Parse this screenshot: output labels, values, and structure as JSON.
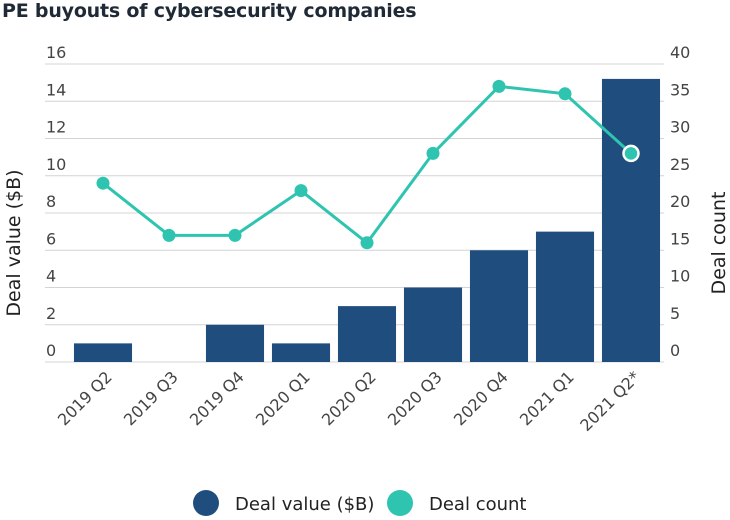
{
  "chart_data": {
    "type": "bar+line",
    "title": "PE buyouts of cybersecurity companies",
    "categories": [
      "2019 Q2",
      "2019 Q3",
      "2019 Q4",
      "2020 Q1",
      "2020 Q2",
      "2020 Q3",
      "2020 Q4",
      "2021 Q1",
      "2021 Q2*"
    ],
    "series": [
      {
        "name": "Deal value ($B)",
        "type": "bar",
        "axis": "left",
        "color": "#1f4e7e",
        "values": [
          1,
          0,
          2,
          1,
          3,
          4,
          6,
          7,
          15.2
        ]
      },
      {
        "name": "Deal count",
        "type": "line",
        "axis": "right",
        "color": "#2ec4b0",
        "values": [
          24,
          17,
          17,
          23,
          16,
          28,
          37,
          36,
          28
        ]
      }
    ],
    "ylabel": "Deal value ($B)",
    "y2label": "Deal count",
    "ylim": [
      0,
      16
    ],
    "y2lim": [
      0,
      40
    ],
    "yticks": [
      "0",
      "2",
      "4",
      "6",
      "8",
      "10",
      "12",
      "14",
      "16"
    ],
    "y2ticks": [
      "0",
      "5",
      "10",
      "15",
      "20",
      "25",
      "30",
      "35",
      "40"
    ],
    "grid": true,
    "legend": "bottom"
  }
}
